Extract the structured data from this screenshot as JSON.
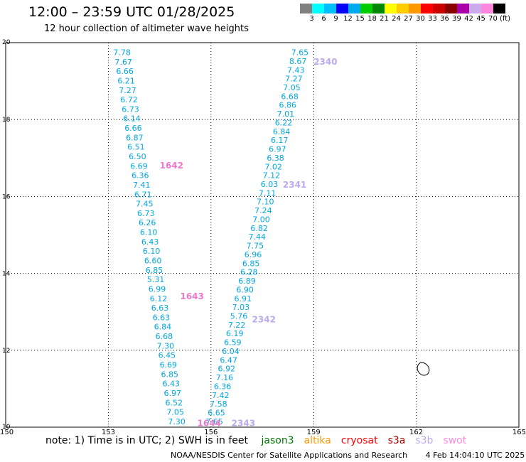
{
  "title": "12:00 – 23:59 UTC 01/28/2025",
  "subtitle": "12 hour collection of altimeter wave heights",
  "legend": {
    "colors": [
      "#808080",
      "#00ffff",
      "#00bfff",
      "#0000ff",
      "#00aaee",
      "#00cc00",
      "#008800",
      "#ffff00",
      "#ffcc00",
      "#ff9900",
      "#ff0000",
      "#cc0000",
      "#880000",
      "#aa00aa",
      "#ccaaee",
      "#ff88dd",
      "#000000"
    ],
    "labels": [
      "3",
      "6",
      "9",
      "12",
      "15",
      "18",
      "21",
      "24",
      "27",
      "30",
      "33",
      "36",
      "39",
      "42",
      "45",
      "70"
    ],
    "unit": "(ft)"
  },
  "axes": {
    "x_ticks": [
      "150",
      "153",
      "156",
      "159",
      "162",
      "165"
    ],
    "y_ticks": [
      "10",
      "12",
      "14",
      "16",
      "18",
      "20"
    ]
  },
  "chart_data": {
    "type": "scatter",
    "xlim": [
      150,
      165
    ],
    "ylim": [
      10,
      20
    ],
    "grid": true,
    "tracks": [
      {
        "mission_color": "#00a8e0",
        "values": [
          "7.78",
          "7.67",
          "6.66",
          "6.21",
          "7.27",
          "6.72",
          "6.73",
          "6.14",
          "6.66",
          "6.87",
          "6.51",
          "6.50",
          "6.69",
          "6.36",
          "7.41",
          "6.71",
          "7.45",
          "6.73",
          "6.26",
          "6.10",
          "6.43",
          "6.10",
          "6.60",
          "6.85",
          "5.31",
          "6.99",
          "6.12",
          "6.63",
          "6.63",
          "6.84",
          "6.68",
          "7.30",
          "6.45",
          "6.69",
          "6.85",
          "6.43",
          "6.97",
          "6.52",
          "7.05",
          "7.30"
        ],
        "start": [
          153.4,
          19.75
        ],
        "end": [
          155.0,
          10.15
        ]
      },
      {
        "mission_color": "#00a8e0",
        "values": [
          "7.65",
          "8.67",
          "7.43",
          "7.27",
          "7.05",
          "6.68",
          "6.86",
          "7.01",
          "6.22",
          "6.84",
          "6.17",
          "6.97",
          "6.38",
          "7.02",
          "7.12",
          "6.03",
          "7.11",
          "7.10",
          "7.24",
          "7.00",
          "6.82",
          "7.44",
          "7.75",
          "6.96",
          "6.85",
          "6.28",
          "6.89",
          "6.90",
          "6.91",
          "7.03",
          "5.76",
          "7.22",
          "6.19",
          "6.59",
          "6.04",
          "6.47",
          "6.92",
          "7.16",
          "6.36",
          "7.42",
          "7.58",
          "6.65",
          "7.65"
        ],
        "start": [
          158.6,
          19.75
        ],
        "end": [
          156.1,
          10.15
        ]
      }
    ],
    "pass_labels": [
      {
        "text": "1642",
        "x": 154.5,
        "y": 16.8,
        "color": "#ee77cc"
      },
      {
        "text": "1643",
        "x": 155.1,
        "y": 13.4,
        "color": "#ee77cc"
      },
      {
        "text": "1644",
        "x": 155.6,
        "y": 10.1,
        "color": "#ee77cc"
      },
      {
        "text": "2340",
        "x": 159.0,
        "y": 19.5,
        "color": "#bbaaee"
      },
      {
        "text": "2341",
        "x": 158.1,
        "y": 16.3,
        "color": "#bbaaee"
      },
      {
        "text": "2342",
        "x": 157.2,
        "y": 12.8,
        "color": "#bbaaee"
      },
      {
        "text": "2343",
        "x": 156.6,
        "y": 10.1,
        "color": "#bbaaee"
      }
    ],
    "land_outline": {
      "x": 162.2,
      "y": 11.5
    }
  },
  "note": {
    "text": "note:  1) Time is in UTC;  2) SWH is in feet",
    "missions": [
      {
        "name": "jason3",
        "color": "#007700"
      },
      {
        "name": "altika",
        "color": "#ff9900"
      },
      {
        "name": "cryosat",
        "color": "#ff0000"
      },
      {
        "name": "s3a",
        "color": "#aa0000"
      },
      {
        "name": "s3b",
        "color": "#bbaaee"
      },
      {
        "name": "swot",
        "color": "#ff88dd"
      }
    ]
  },
  "footer": {
    "center": "NOAA/NESDIS Center for Satellite Applications and Research",
    "timestamp": "4 Feb 14:04:10 UTC 2025"
  }
}
